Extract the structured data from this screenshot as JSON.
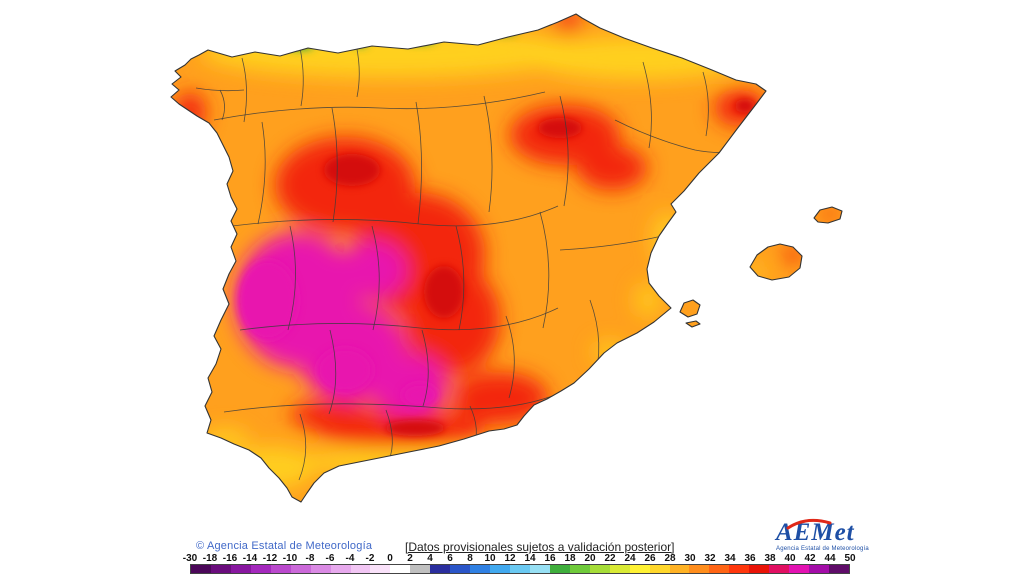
{
  "palette": {
    "map-base": "#ffa01e",
    "map-yellow": "#ffd51e",
    "map-green": "#3aa83a",
    "map-red": "#f3250e",
    "map-dark-red": "#d40d0d",
    "map-magenta": "#e816ae",
    "map-outline": "#333333",
    "province-line": "#3c3c3c",
    "copyright-blue": "#4169c8",
    "logo-blue": "#1e4fa5",
    "logo-red": "#e02818"
  },
  "footer": {
    "copyright": "© Agencia Estatal de Meteorología",
    "note": "[Datos provisionales sujetos a validación posterior]",
    "logo_text": "AEMet",
    "logo_subtitle": "Agencia Estatal de Meteorología"
  },
  "legend": {
    "values": [
      "-30",
      "-18",
      "-16",
      "-14",
      "-12",
      "-10",
      "-8",
      "-6",
      "-4",
      "-2",
      "0",
      "2",
      "4",
      "6",
      "8",
      "10",
      "12",
      "14",
      "16",
      "18",
      "20",
      "22",
      "24",
      "26",
      "28",
      "30",
      "32",
      "34",
      "36",
      "38",
      "40",
      "42",
      "44",
      "50"
    ],
    "colors": [
      "#4b0759",
      "#6a0d7d",
      "#8817a0",
      "#a429bd",
      "#ba49cd",
      "#cb69d9",
      "#da8ae4",
      "#e7a9ed",
      "#f2c6f4",
      "#fae2fa",
      "#ffffff",
      "#c0c0c0",
      "#2a2e9e",
      "#2a55c8",
      "#2f80e3",
      "#41a9ef",
      "#6ac9f2",
      "#97e0f4",
      "#3fae3c",
      "#6fca3a",
      "#a6dd38",
      "#d9ea35",
      "#fff233",
      "#ffd72b",
      "#ffb224",
      "#ff8d1c",
      "#ff6414",
      "#ff370c",
      "#e91307",
      "#e10f62",
      "#e312b2",
      "#a30da8",
      "#5f0c69"
    ]
  }
}
